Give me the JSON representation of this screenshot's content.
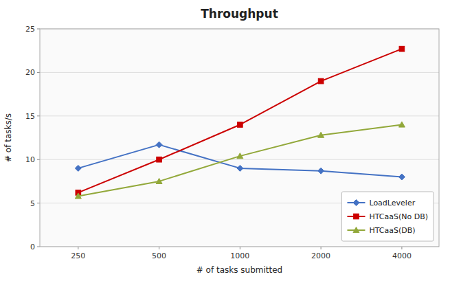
{
  "chart_data": {
    "type": "line",
    "title": "Throughput",
    "xlabel": "# of tasks submitted",
    "ylabel": "# of tasks/s",
    "x": [
      250,
      500,
      1000,
      2000,
      4000
    ],
    "series": [
      {
        "name": "LoadLeveler",
        "color": "#4472C4",
        "marker": "diamond",
        "values": [
          9.0,
          11.7,
          9.0,
          8.7,
          8.0
        ]
      },
      {
        "name": "HTCaaS(No DB)",
        "color": "#CC0000",
        "marker": "square",
        "values": [
          6.2,
          10.0,
          14.0,
          19.0,
          22.7
        ]
      },
      {
        "name": "HTCaaS(DB)",
        "color": "#92A83A",
        "marker": "triangle",
        "values": [
          5.8,
          7.5,
          10.4,
          12.8,
          14.0
        ]
      }
    ],
    "log": "x",
    "xlim": [
      180,
      5500
    ],
    "xticks": [
      250,
      500,
      1000,
      2000,
      4000
    ],
    "ylim": [
      0,
      25
    ],
    "yticks": [
      0,
      5,
      10,
      15,
      20,
      25
    ],
    "grid": true,
    "legend": "lower right"
  }
}
